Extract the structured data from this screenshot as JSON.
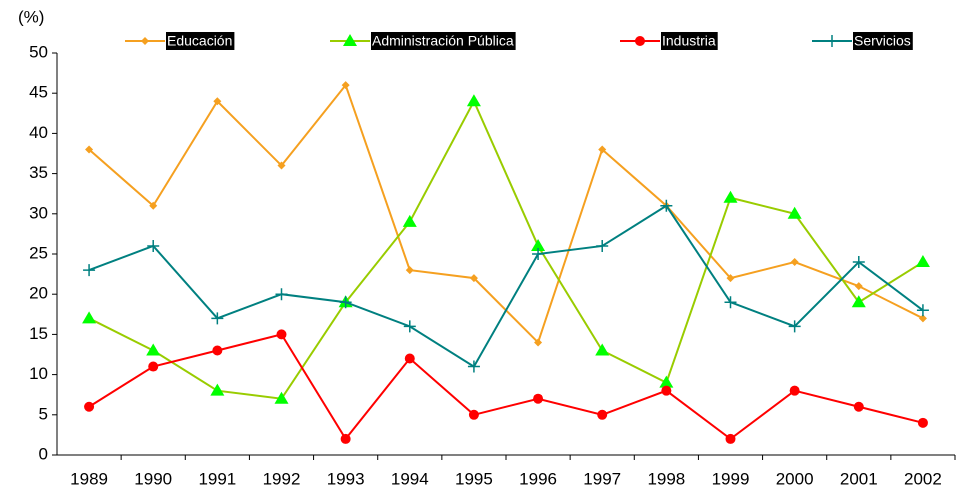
{
  "chart_data": {
    "type": "line",
    "y_label": "(%)",
    "categories": [
      "1989",
      "1990",
      "1991",
      "1992",
      "1993",
      "1994",
      "1995",
      "1996",
      "1997",
      "1998",
      "1999",
      "2000",
      "2001",
      "2002"
    ],
    "series": [
      {
        "name": "Educación",
        "color": "#F5A020",
        "marker": "diamond",
        "marker_color": "#F5A020",
        "values": [
          38,
          31,
          44,
          36,
          46,
          23,
          22,
          14,
          38,
          31,
          22,
          24,
          21,
          17
        ]
      },
      {
        "name": "Administración Pública",
        "color": "#99CC00",
        "marker": "triangle",
        "marker_color": "#00FF00",
        "values": [
          17,
          13,
          8,
          7,
          19,
          29,
          44,
          26,
          13,
          9,
          32,
          30,
          19,
          24
        ]
      },
      {
        "name": "Industria",
        "color": "#FF0000",
        "marker": "circle",
        "marker_color": "#FF0000",
        "values": [
          6,
          11,
          13,
          15,
          2,
          12,
          5,
          7,
          5,
          8,
          2,
          8,
          6,
          4
        ]
      },
      {
        "name": "Servicios",
        "color": "#008080",
        "marker": "plus",
        "marker_color": "#008080",
        "values": [
          23,
          26,
          17,
          20,
          19,
          16,
          11,
          25,
          26,
          31,
          19,
          16,
          24,
          18
        ]
      }
    ],
    "ylim": [
      0,
      50
    ],
    "yticks": [
      0,
      5,
      10,
      15,
      20,
      25,
      30,
      35,
      40,
      45,
      50
    ],
    "grid": false,
    "legend": "top"
  }
}
